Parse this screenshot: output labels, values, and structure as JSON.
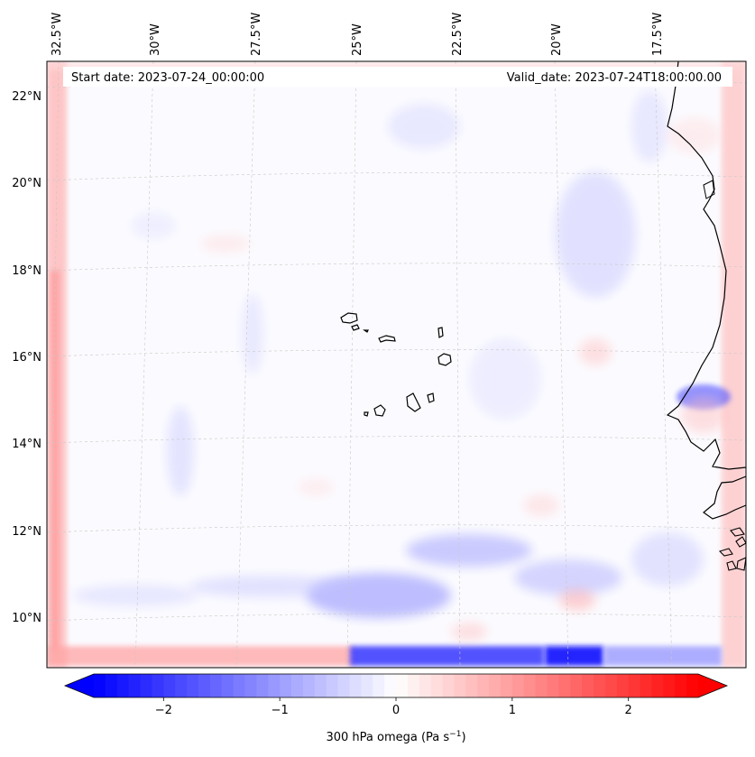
{
  "header": {
    "start_date": "Start date: 2023-07-24_00:00:00",
    "valid_date": "Valid_date: 2023-07-24T18:00:00.00"
  },
  "map": {
    "lon_labels": [
      "32.5°W",
      "30°W",
      "27.5°W",
      "25°W",
      "22.5°W",
      "20°W",
      "17.5°W"
    ],
    "lat_labels": [
      "22°N",
      "20°N",
      "18°N",
      "16°N",
      "14°N",
      "12°N",
      "10°N"
    ],
    "extent": {
      "lon_min": -33.0,
      "lon_max": -15.5,
      "lat_min": 8.9,
      "lat_max": 22.6
    }
  },
  "colorbar": {
    "tick_labels": [
      "−2",
      "−1",
      "0",
      "1",
      "2"
    ],
    "ticks": [
      -2,
      -1,
      0,
      1,
      2
    ],
    "vmin": -2.6,
    "vmax": 2.6,
    "levels": 52,
    "cmap": "bwr",
    "label": "300 hPa omega (Pa s",
    "label_sup": "−1",
    "label_close": ")"
  },
  "colors": {
    "negative": "#0000ff",
    "zero": "#ffffff",
    "positive": "#ff0000",
    "coastline": "#000000",
    "gridline": "#bdbdbd"
  }
}
